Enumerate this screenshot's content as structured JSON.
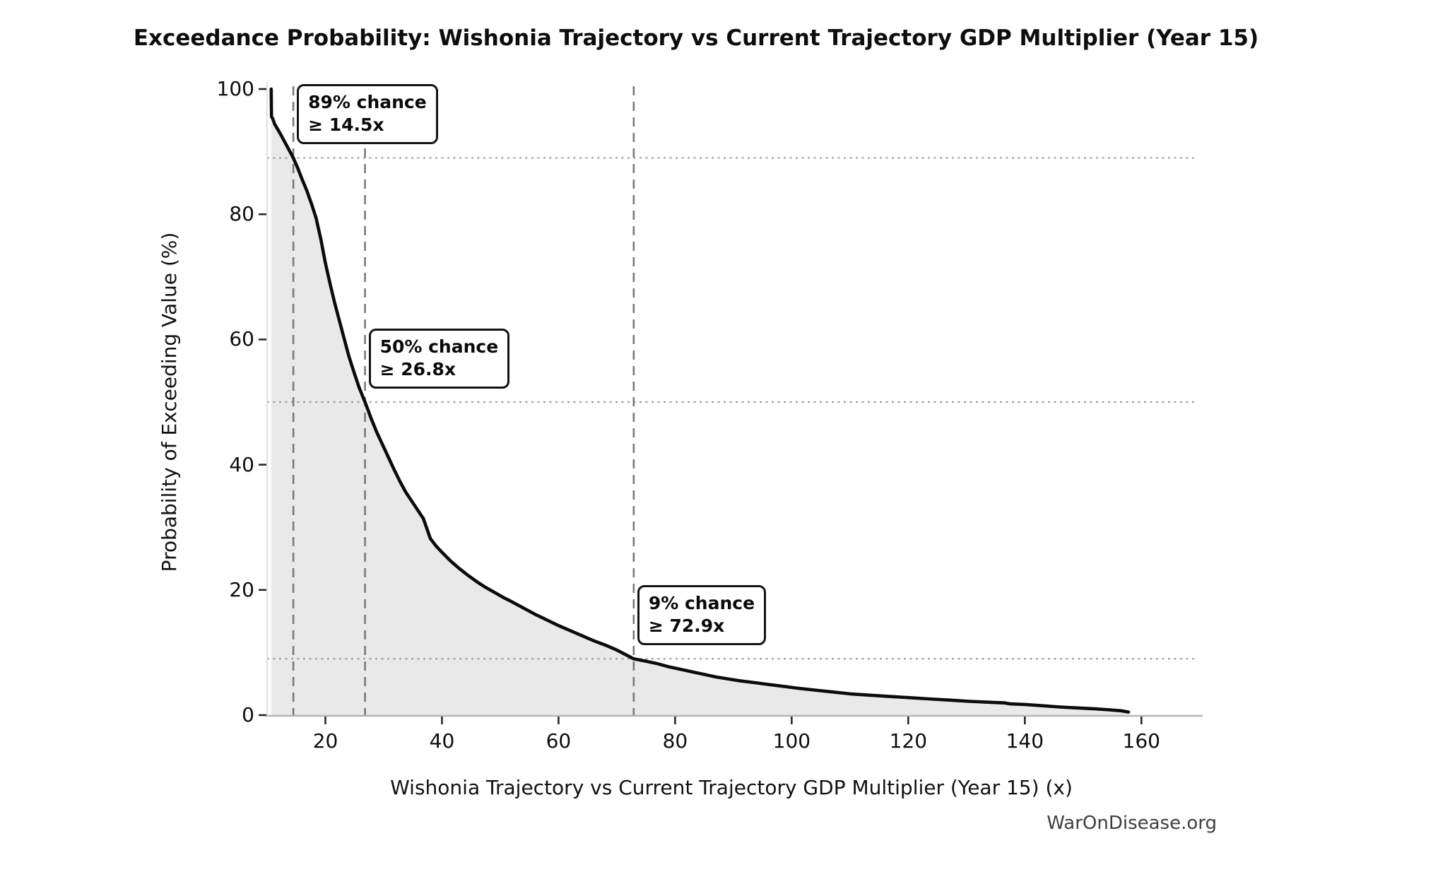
{
  "title": "Exceedance Probability: Wishonia Trajectory vs Current Trajectory GDP Multiplier (Year 15)",
  "watermark": "WarOnDisease.org",
  "chart_data": {
    "type": "line",
    "subtype": "exceedance-probability-curve",
    "title": "Exceedance Probability: Wishonia Trajectory vs Current Trajectory GDP Multiplier (Year 15)",
    "xlabel": "Wishonia Trajectory vs Current Trajectory GDP Multiplier (Year 15) (x)",
    "ylabel": "Probability of Exceeding Value (%)",
    "xlim": [
      10,
      169.3
    ],
    "ylim": [
      0,
      100
    ],
    "x_ticks": [
      20,
      40,
      60,
      80,
      100,
      120,
      140,
      160
    ],
    "y_ticks": [
      0,
      20,
      40,
      60,
      80,
      100
    ],
    "legend": "none",
    "grid": "dotted horizontal and dashed vertical reference lines only",
    "curve": {
      "x": [
        10.7,
        10.75,
        11.0,
        11.3,
        11.8,
        12.3,
        13.0,
        13.7,
        14.5,
        15.2,
        16.0,
        16.8,
        17.6,
        18.4,
        19.2,
        20.0,
        20.8,
        21.6,
        22.4,
        23.2,
        24.0,
        24.9,
        25.8,
        26.8,
        27.8,
        28.8,
        29.8,
        30.8,
        31.8,
        32.8,
        33.8,
        34.8,
        35.8,
        36.8,
        38.0,
        39.0,
        40.0,
        41.5,
        43.0,
        44.5,
        46.0,
        47.5,
        49.0,
        50.5,
        52.0,
        54.0,
        56.0,
        58.0,
        60.0,
        62.0,
        64.0,
        66.0,
        68.0,
        70.0,
        72.9,
        75.0,
        77.0,
        79.0,
        81.0,
        83.0,
        85.0,
        87.0,
        89.0,
        91.0,
        93.5,
        96.0,
        98.5,
        101.0,
        104.0,
        107.0,
        110.0,
        113.0,
        116.5,
        120.0,
        123.5,
        127.0,
        130.5,
        134.0,
        136.5,
        137.5,
        140.0,
        143.0,
        146.0,
        149.0,
        152.0,
        154.5,
        156.5,
        157.8
      ],
      "y": [
        100,
        95.6,
        95.2,
        94.4,
        93.6,
        92.8,
        91.6,
        90.4,
        89.0,
        87.5,
        85.6,
        83.8,
        81.7,
        79.4,
        76.1,
        72.2,
        68.9,
        65.8,
        63.0,
        60.2,
        57.4,
        54.8,
        52.3,
        50.0,
        47.5,
        45.2,
        43.2,
        41.2,
        39.2,
        37.3,
        35.6,
        34.2,
        32.8,
        31.4,
        28.2,
        27.0,
        26.0,
        24.6,
        23.4,
        22.3,
        21.3,
        20.4,
        19.6,
        18.8,
        18.1,
        17.1,
        16.1,
        15.2,
        14.3,
        13.5,
        12.7,
        11.9,
        11.2,
        10.4,
        9.0,
        8.6,
        8.2,
        7.7,
        7.3,
        6.9,
        6.5,
        6.1,
        5.8,
        5.5,
        5.2,
        4.9,
        4.6,
        4.3,
        4.0,
        3.7,
        3.4,
        3.2,
        3.0,
        2.8,
        2.6,
        2.4,
        2.2,
        2.05,
        1.95,
        1.8,
        1.7,
        1.5,
        1.3,
        1.15,
        1.0,
        0.85,
        0.7,
        0.5
      ]
    },
    "reference_lines": {
      "horizontal_pct": [
        89,
        50,
        9
      ],
      "vertical_x": [
        14.5,
        26.8,
        72.9
      ]
    },
    "annotations": [
      {
        "line1": "89% chance",
        "line2": "≥ 14.5x",
        "x": 14.5,
        "pct": 89
      },
      {
        "line1": "50% chance",
        "line2": "≥ 26.8x",
        "x": 26.8,
        "pct": 50
      },
      {
        "line1": "9% chance",
        "line2": "≥ 72.9x",
        "x": 72.9,
        "pct": 9
      }
    ],
    "colors": {
      "curve": "#0b0b0b",
      "fill": "#e9e9e9",
      "dashed_vline": "#7a7a7a",
      "dotted_hline": "#9e9e9e",
      "bottom_spine": "#b5b5b5",
      "left_spine": "#e0e0e0",
      "tick": "#222222",
      "watermark": "#3f3f3f"
    }
  }
}
